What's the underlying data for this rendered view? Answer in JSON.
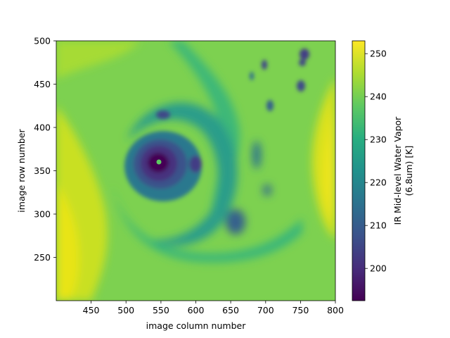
{
  "chart_data": {
    "type": "heatmap",
    "title": "",
    "xlabel": "image column number",
    "ylabel": "image row number",
    "xlim": [
      400,
      800
    ],
    "ylim": [
      200,
      500
    ],
    "x_ticks": [
      450,
      500,
      550,
      600,
      650,
      700,
      750,
      800
    ],
    "y_ticks": [
      250,
      300,
      350,
      400,
      450,
      500
    ],
    "colorbar": {
      "label_line1": "IR Mid-level Water Vapor",
      "label_line2": "(6.8um) [K]",
      "range": [
        192.5,
        253.0
      ],
      "ticks": [
        200,
        210,
        220,
        230,
        240,
        250
      ],
      "colormap": "viridis"
    },
    "features": [
      {
        "name": "eye",
        "x": 548,
        "y": 358,
        "value": 228
      },
      {
        "name": "eyewall",
        "x": 548,
        "y": 358,
        "value": 193
      },
      {
        "name": "dry west",
        "x": 420,
        "y": 290,
        "value": 251
      },
      {
        "name": "dry east",
        "x": 790,
        "y": 330,
        "value": 250
      },
      {
        "name": "background",
        "value": 236
      }
    ]
  }
}
